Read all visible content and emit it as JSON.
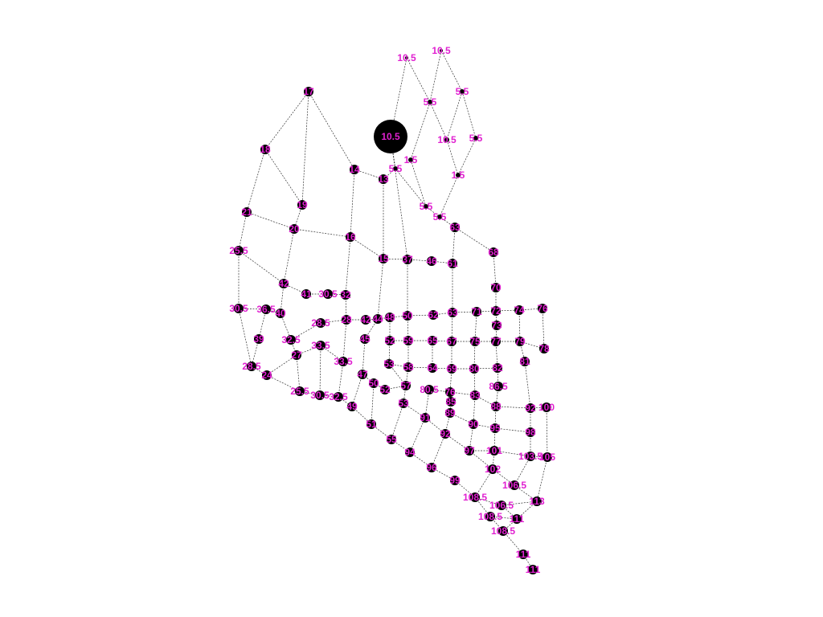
{
  "colors": {
    "background": "#ffffff",
    "edge": "#333333",
    "node": "#000000",
    "label": "#e020d0"
  },
  "nodes": [
    {
      "id": "n1",
      "label": "10.5"
    },
    {
      "id": "n2",
      "label": "10.5"
    },
    {
      "id": "n3",
      "label": "5.5"
    },
    {
      "id": "n4",
      "label": "5.5"
    },
    {
      "id": "n5",
      "label": "10.5"
    },
    {
      "id": "n6",
      "label": "10.5"
    },
    {
      "id": "n7",
      "label": "5.5"
    },
    {
      "id": "n8",
      "label": "1.5"
    },
    {
      "id": "n9",
      "label": "5.5"
    },
    {
      "id": "n10",
      "label": "1.5"
    },
    {
      "id": "n11",
      "label": "5.5"
    },
    {
      "id": "n12",
      "label": "5.5"
    },
    {
      "id": "n17",
      "label": "17"
    },
    {
      "id": "n18",
      "label": "18"
    },
    {
      "id": "n19",
      "label": "19"
    },
    {
      "id": "n14",
      "label": "14"
    },
    {
      "id": "n13",
      "label": "13"
    },
    {
      "id": "n21",
      "label": "21"
    },
    {
      "id": "n20",
      "label": "20"
    },
    {
      "id": "n16",
      "label": "16"
    },
    {
      "id": "n15",
      "label": "15"
    },
    {
      "id": "n37",
      "label": "37"
    },
    {
      "id": "n46",
      "label": "46"
    },
    {
      "id": "n61",
      "label": "61"
    },
    {
      "id": "n63",
      "label": "63"
    },
    {
      "id": "n68",
      "label": "68"
    },
    {
      "id": "n25_5",
      "label": "25.5"
    },
    {
      "id": "n42",
      "label": "42"
    },
    {
      "id": "n41",
      "label": "41"
    },
    {
      "id": "n30_5",
      "label": "30.5"
    },
    {
      "id": "n32",
      "label": "32"
    },
    {
      "id": "n70",
      "label": "70"
    },
    {
      "id": "n30_5b",
      "label": "30.5"
    },
    {
      "id": "n36_5",
      "label": "36.5"
    },
    {
      "id": "n40",
      "label": "40"
    },
    {
      "id": "n28_5",
      "label": "28.5"
    },
    {
      "id": "n28",
      "label": "28"
    },
    {
      "id": "n42b",
      "label": "42"
    },
    {
      "id": "n44",
      "label": "44"
    },
    {
      "id": "n48",
      "label": "48"
    },
    {
      "id": "n50",
      "label": "50"
    },
    {
      "id": "n62",
      "label": "62"
    },
    {
      "id": "n63b",
      "label": "63"
    },
    {
      "id": "n71",
      "label": "71"
    },
    {
      "id": "n72",
      "label": "72"
    },
    {
      "id": "n74",
      "label": "74"
    },
    {
      "id": "n76",
      "label": "76"
    },
    {
      "id": "n73",
      "label": "73"
    },
    {
      "id": "n39",
      "label": "39"
    },
    {
      "id": "n32_5",
      "label": "32.5"
    },
    {
      "id": "n33_5",
      "label": "33.5"
    },
    {
      "id": "n45",
      "label": "45"
    },
    {
      "id": "n52",
      "label": "52"
    },
    {
      "id": "n59",
      "label": "59"
    },
    {
      "id": "n65",
      "label": "65"
    },
    {
      "id": "n67",
      "label": "67"
    },
    {
      "id": "n75",
      "label": "75"
    },
    {
      "id": "n77",
      "label": "77"
    },
    {
      "id": "n79",
      "label": "79"
    },
    {
      "id": "n78",
      "label": "78"
    },
    {
      "id": "n28_5b",
      "label": "28.5"
    },
    {
      "id": "n27",
      "label": "27"
    },
    {
      "id": "n33_5b",
      "label": "33.5"
    },
    {
      "id": "n53",
      "label": "53"
    },
    {
      "id": "n58",
      "label": "58"
    },
    {
      "id": "n64",
      "label": "64"
    },
    {
      "id": "n69",
      "label": "69"
    },
    {
      "id": "n80",
      "label": "80"
    },
    {
      "id": "n82",
      "label": "82"
    },
    {
      "id": "n81",
      "label": "81"
    },
    {
      "id": "n24",
      "label": "24"
    },
    {
      "id": "n47",
      "label": "47"
    },
    {
      "id": "n50b",
      "label": "50"
    },
    {
      "id": "n57",
      "label": "57"
    },
    {
      "id": "n80_5",
      "label": "80.5"
    },
    {
      "id": "n86_5",
      "label": "86.5"
    },
    {
      "id": "n25_5b",
      "label": "25.5"
    },
    {
      "id": "n30_5c",
      "label": "30.5"
    },
    {
      "id": "n32_5b",
      "label": "32.5"
    },
    {
      "id": "n52b",
      "label": "52"
    },
    {
      "id": "n76b",
      "label": "76"
    },
    {
      "id": "n85",
      "label": "85"
    },
    {
      "id": "n83",
      "label": "83"
    },
    {
      "id": "n88",
      "label": "88"
    },
    {
      "id": "n49",
      "label": "49"
    },
    {
      "id": "n53b",
      "label": "53"
    },
    {
      "id": "n89",
      "label": "89"
    },
    {
      "id": "n92",
      "label": "92"
    },
    {
      "id": "n100",
      "label": "100"
    },
    {
      "id": "n51",
      "label": "51"
    },
    {
      "id": "n91",
      "label": "91"
    },
    {
      "id": "n90",
      "label": "90"
    },
    {
      "id": "n95",
      "label": "95"
    },
    {
      "id": "n98",
      "label": "98"
    },
    {
      "id": "n55",
      "label": "55"
    },
    {
      "id": "n92b",
      "label": "92"
    },
    {
      "id": "n94",
      "label": "94"
    },
    {
      "id": "n97",
      "label": "97"
    },
    {
      "id": "n101",
      "label": "101"
    },
    {
      "id": "n103_5",
      "label": "103.5"
    },
    {
      "id": "n105",
      "label": "105"
    },
    {
      "id": "n96",
      "label": "96"
    },
    {
      "id": "n102",
      "label": "102"
    },
    {
      "id": "n99",
      "label": "99"
    },
    {
      "id": "n106_5",
      "label": "106.5"
    },
    {
      "id": "n108_5",
      "label": "108.5"
    },
    {
      "id": "n106_5b",
      "label": "106.5"
    },
    {
      "id": "n113",
      "label": "113"
    },
    {
      "id": "n108_5b",
      "label": "108.5"
    },
    {
      "id": "n111",
      "label": "111"
    },
    {
      "id": "n108_5c",
      "label": "108.5"
    },
    {
      "id": "n111b",
      "label": "111"
    },
    {
      "id": "n111c",
      "label": "111"
    }
  ]
}
